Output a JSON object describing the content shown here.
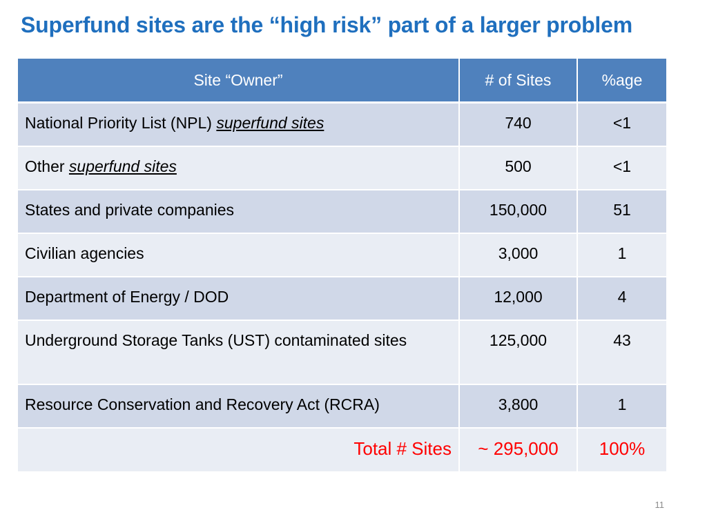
{
  "slide": {
    "title": "Superfund sites are the “high risk” part of a larger problem",
    "page_number": "11"
  },
  "table": {
    "headers": [
      "Site “Owner”",
      "# of Sites",
      "%age"
    ],
    "rows": [
      {
        "label_plain": "National Priority List (NPL) ",
        "label_link": "superfund sites",
        "sites": "740",
        "pct": "<1"
      },
      {
        "label_plain": "Other ",
        "label_link": "superfund sites",
        "sites": "500",
        "pct": "<1"
      },
      {
        "label_plain": "States and private companies",
        "label_link": "",
        "sites": "150,000",
        "pct": "51"
      },
      {
        "label_plain": "Civilian agencies",
        "label_link": "",
        "sites": "3,000",
        "pct": "1"
      },
      {
        "label_plain": "Department of Energy / DOD",
        "label_link": "",
        "sites": "12,000",
        "pct": "4"
      },
      {
        "label_plain": "Underground Storage Tanks (UST) contaminated sites",
        "label_link": "",
        "sites": "125,000",
        "pct": "43"
      },
      {
        "label_plain": "Resource Conservation and Recovery Act (RCRA)",
        "label_link": "",
        "sites": "3,800",
        "pct": "1"
      }
    ],
    "total": {
      "label": "Total # Sites",
      "sites": "~ 295,000",
      "pct": "100%"
    }
  },
  "colors": {
    "title": "#1f6fbe",
    "header_bg": "#4f81bd",
    "row_dark": "#d0d8e8",
    "row_light": "#e9edf4",
    "total_text": "#ff0000"
  }
}
